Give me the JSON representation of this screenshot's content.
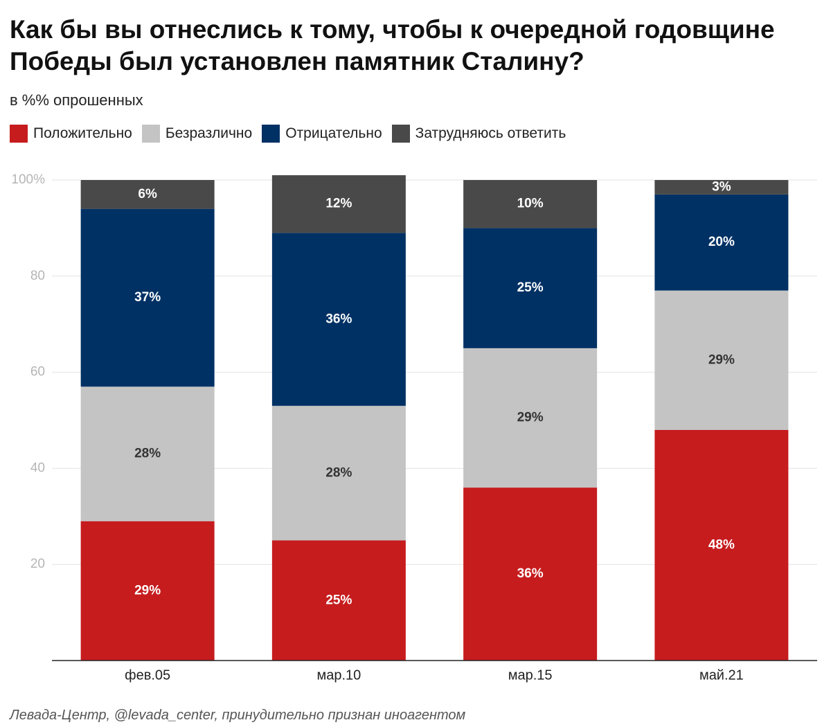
{
  "chart_data": {
    "type": "bar",
    "stacked": true,
    "title": "Как бы вы отнеслись к тому, чтобы к очередной годовщине Победы был установлен памятник Сталину?",
    "subtitle": "в %% опрошенных",
    "source": "Левада-Центр, @levada_center, принудительно признан иноагентом",
    "categories": [
      "фев.05",
      "мар.10",
      "мар.15",
      "май.21"
    ],
    "series": [
      {
        "name": "Положительно",
        "color": "#c61c1e",
        "label_color": "#ffffff",
        "values": [
          29,
          25,
          36,
          48
        ],
        "value_labels": [
          "29%",
          "25%",
          "36%",
          "48%"
        ]
      },
      {
        "name": "Безразлично",
        "color": "#c4c4c4",
        "label_color": "#333333",
        "values": [
          28,
          28,
          29,
          29
        ],
        "value_labels": [
          "28%",
          "28%",
          "29%",
          "29%"
        ]
      },
      {
        "name": "Отрицательно",
        "color": "#003164",
        "label_color": "#ffffff",
        "values": [
          37,
          36,
          25,
          20
        ],
        "value_labels": [
          "37%",
          "36%",
          "25%",
          "20%"
        ]
      },
      {
        "name": "Затрудняюсь ответить",
        "color": "#494949",
        "label_color": "#ffffff",
        "values": [
          6,
          12,
          10,
          3
        ],
        "value_labels": [
          "6%",
          "12%",
          "10%",
          "3%"
        ]
      }
    ],
    "ylim": [
      0,
      100
    ],
    "yticks": [
      20,
      40,
      60,
      80,
      {
        "value": 100,
        "label": "100%"
      }
    ],
    "grid": true
  }
}
